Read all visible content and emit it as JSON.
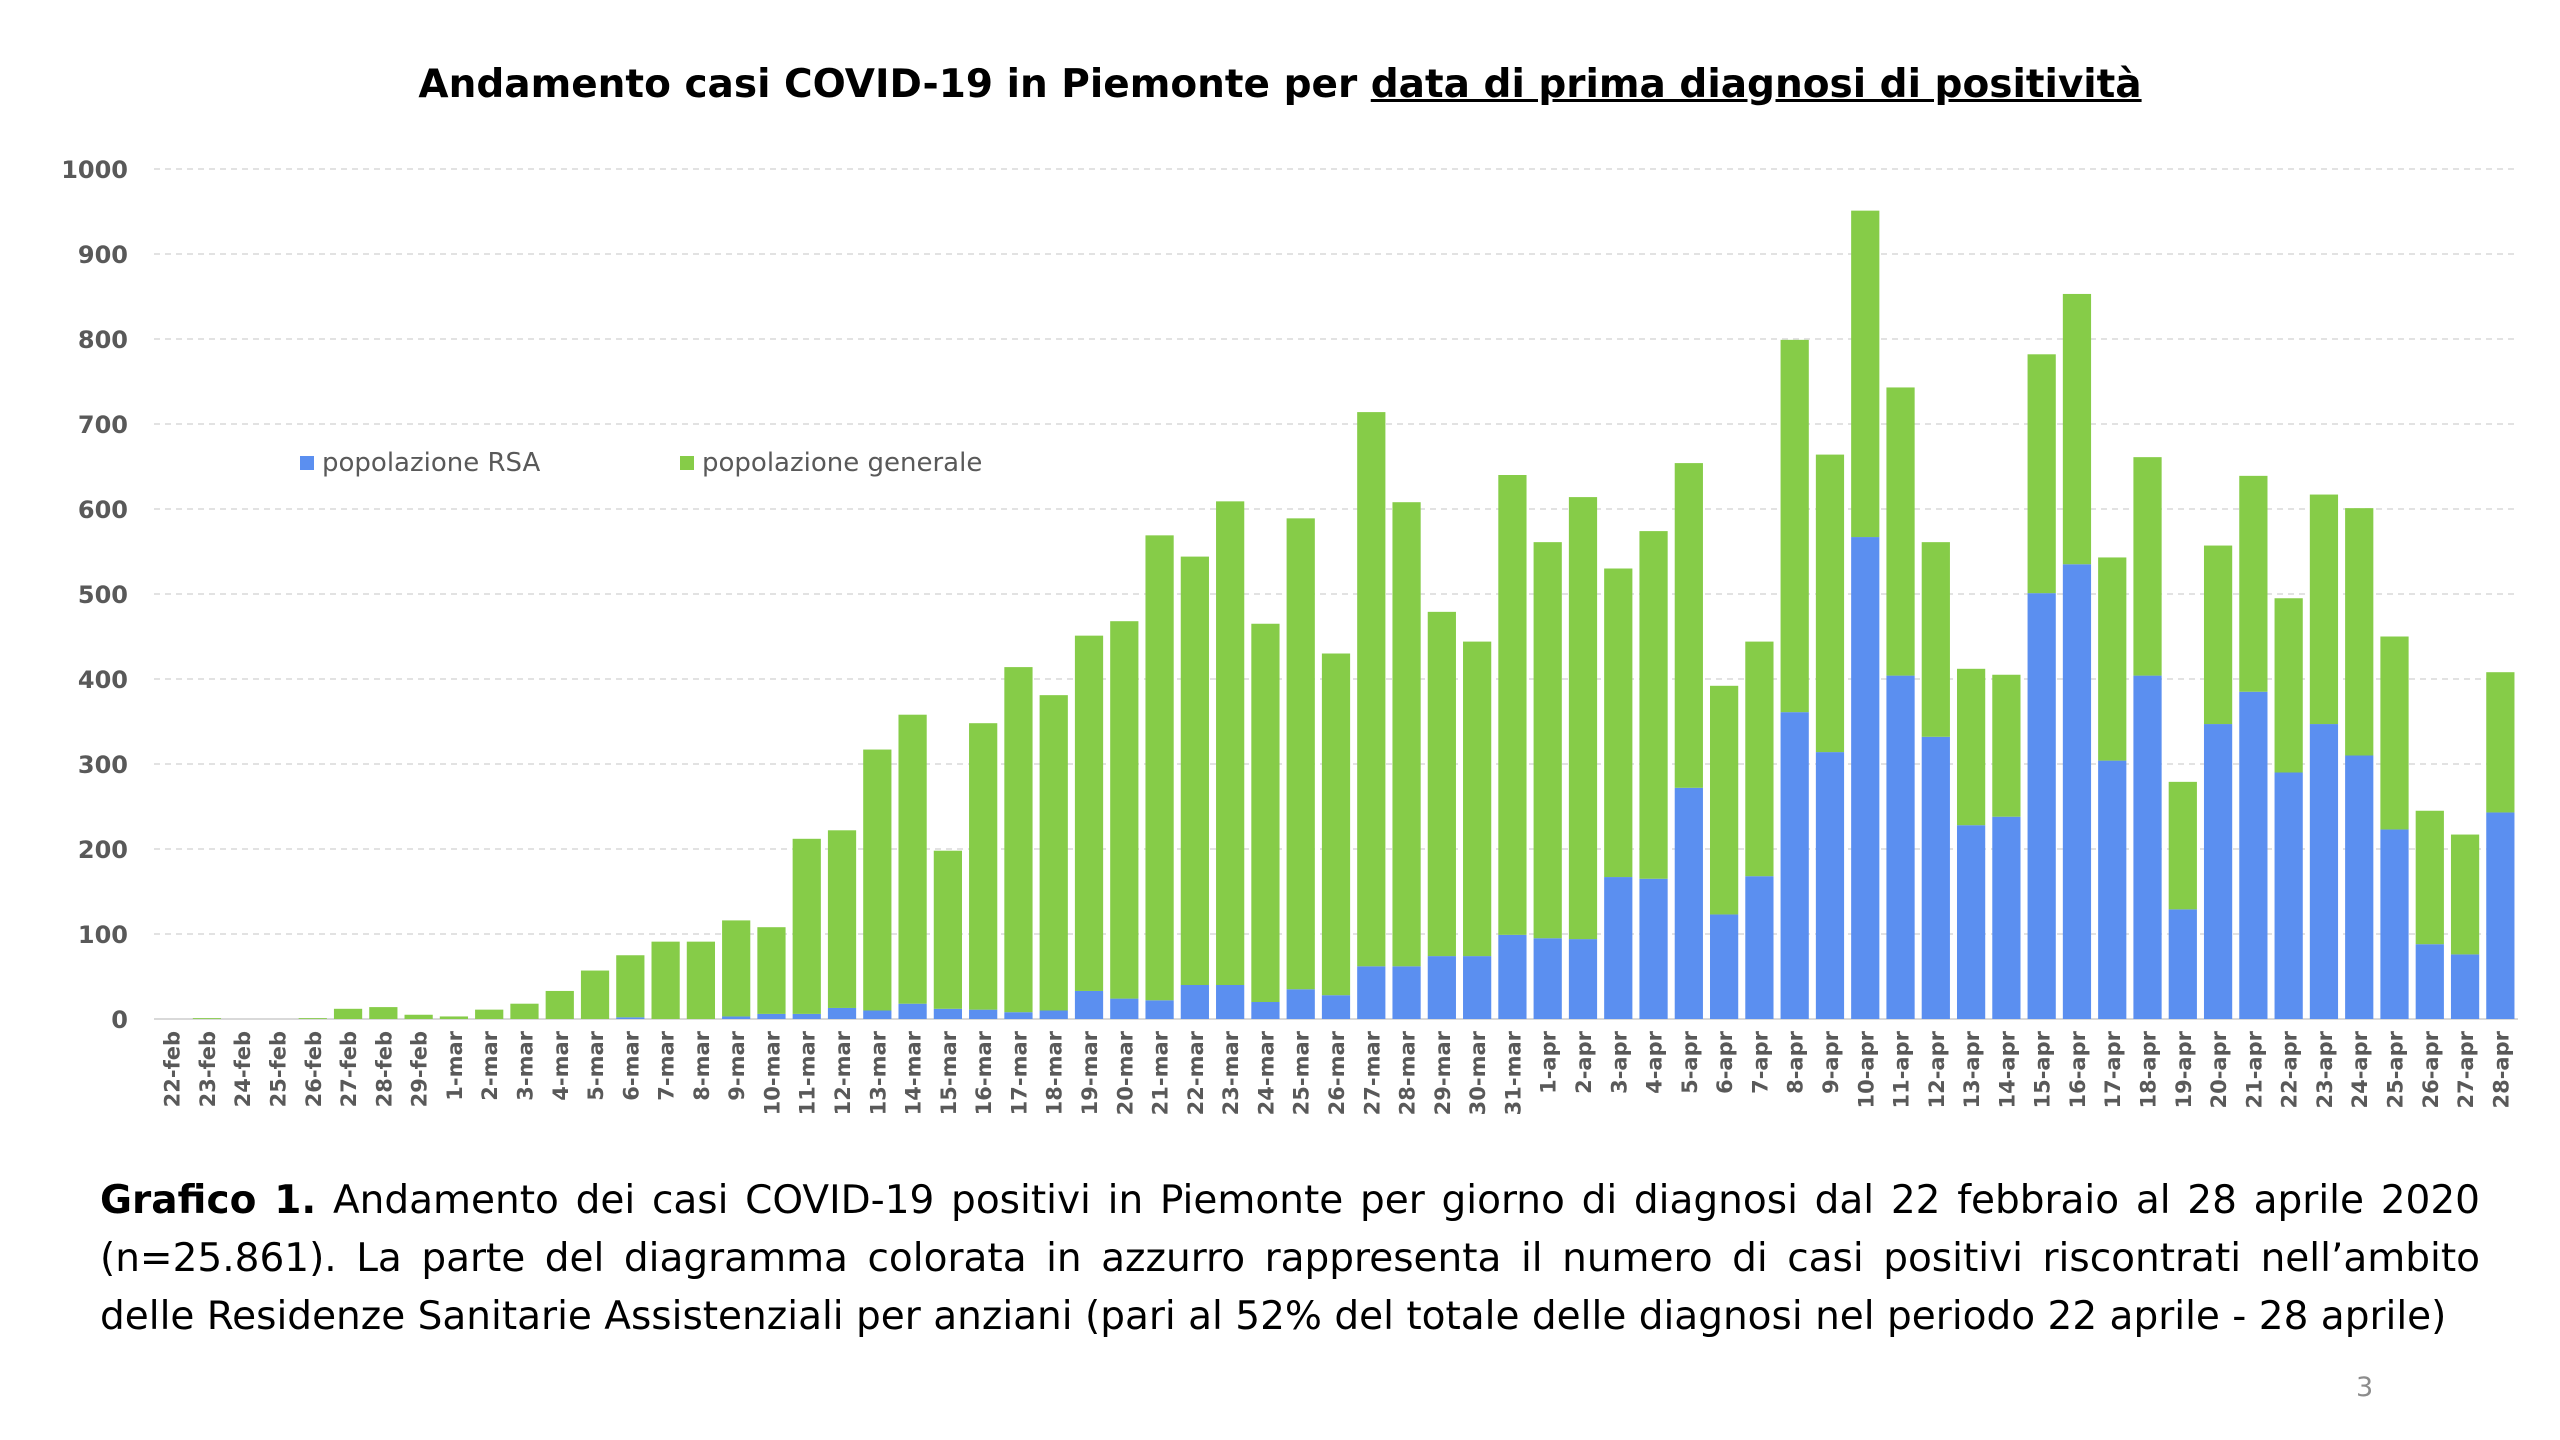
{
  "page": {
    "caption_label": "Grafico 1.",
    "caption_text": " Andamento dei casi COVID-19 positivi in Piemonte per giorno di diagnosi dal 22 febbraio al 28 aprile 2020 (n=25.861). La parte del diagramma colorata in azzurro rappresenta il numero di casi positivi riscontrati nell’ambito delle Residenze Sanitarie Assistenziali per anziani (pari al 52% del totale delle diagnosi nel periodo 22 aprile - 28 aprile)",
    "page_number": "3"
  },
  "chart_data": {
    "type": "bar",
    "stacked": true,
    "title": "Andamento casi COVID-19 in Piemonte per data di prima diagnosi di positività",
    "title_plain": "Andamento casi COVID-19 in Piemonte per ",
    "title_underlined": "data di prima diagnosi di positività",
    "xlabel": "",
    "ylabel": "",
    "ylim": [
      0,
      1000
    ],
    "yticks": [
      0,
      100,
      200,
      300,
      400,
      500,
      600,
      700,
      800,
      900,
      1000
    ],
    "grid": true,
    "legend_position": "top-left",
    "categories": [
      "22-feb",
      "23-feb",
      "24-feb",
      "25-feb",
      "26-feb",
      "27-feb",
      "28-feb",
      "29-feb",
      "1-mar",
      "2-mar",
      "3-mar",
      "4-mar",
      "5-mar",
      "6-mar",
      "7-mar",
      "8-mar",
      "9-mar",
      "10-mar",
      "11-mar",
      "12-mar",
      "13-mar",
      "14-mar",
      "15-mar",
      "16-mar",
      "17-mar",
      "18-mar",
      "19-mar",
      "20-mar",
      "21-mar",
      "22-mar",
      "23-mar",
      "24-mar",
      "25-mar",
      "26-mar",
      "27-mar",
      "28-mar",
      "29-mar",
      "30-mar",
      "31-mar",
      "1-apr",
      "2-apr",
      "3-apr",
      "4-apr",
      "5-apr",
      "6-apr",
      "7-apr",
      "8-apr",
      "9-apr",
      "10-apr",
      "11-apr",
      "12-apr",
      "13-apr",
      "14-apr",
      "15-apr",
      "16-apr",
      "17-apr",
      "18-apr",
      "19-apr",
      "20-apr",
      "21-apr",
      "22-apr",
      "23-apr",
      "24-apr",
      "25-apr",
      "26-apr",
      "27-apr",
      "28-apr"
    ],
    "series": [
      {
        "name": "popolazione RSA",
        "color": "#5b8ff0",
        "values": [
          0,
          0,
          0,
          0,
          0,
          0,
          0,
          0,
          0,
          0,
          0,
          0,
          0,
          2,
          0,
          0,
          3,
          6,
          6,
          13,
          10,
          18,
          12,
          11,
          8,
          10,
          33,
          24,
          22,
          40,
          40,
          20,
          35,
          28,
          62,
          62,
          74,
          74,
          99,
          95,
          94,
          167,
          165,
          272,
          123,
          168,
          361,
          314,
          567,
          404,
          332,
          228,
          238,
          501,
          535,
          304,
          404,
          129,
          347,
          385,
          290,
          347,
          310,
          223,
          88,
          76,
          243
        ]
      },
      {
        "name": "popolazione generale",
        "color": "#86cc48",
        "values": [
          0,
          1,
          0,
          0,
          1,
          12,
          14,
          5,
          3,
          11,
          18,
          33,
          57,
          73,
          91,
          91,
          113,
          102,
          206,
          209,
          307,
          340,
          186,
          337,
          406,
          371,
          418,
          444,
          547,
          504,
          569,
          445,
          554,
          402,
          652,
          546,
          405,
          370,
          541,
          466,
          520,
          363,
          409,
          382,
          269,
          276,
          438,
          350,
          384,
          339,
          229,
          184,
          167,
          281,
          318,
          239,
          257,
          150,
          210,
          254,
          205,
          270,
          291,
          227,
          157,
          141,
          165
        ]
      }
    ]
  }
}
